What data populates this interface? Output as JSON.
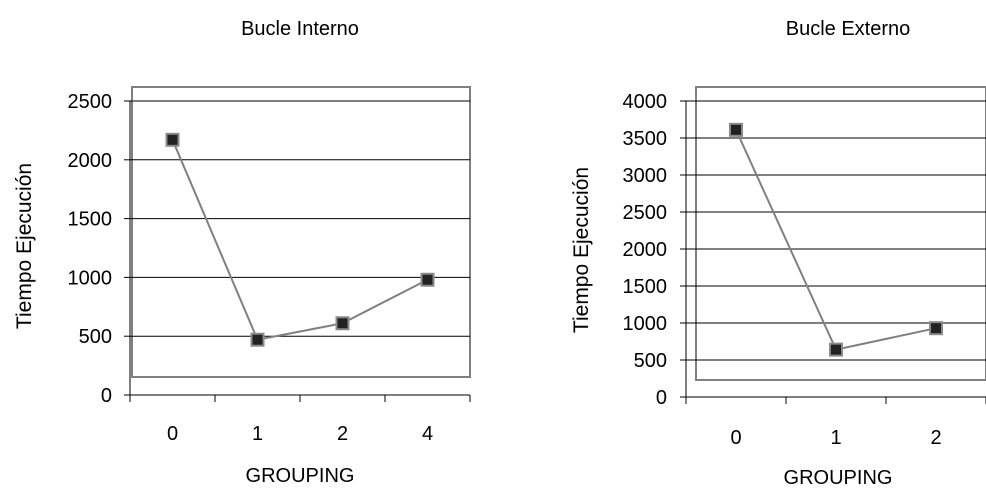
{
  "chart_data": [
    {
      "type": "line",
      "title": "Bucle Interno",
      "xlabel": "GROUPING",
      "ylabel": "Tiempo Ejecución",
      "categories": [
        "0",
        "1",
        "2",
        "4"
      ],
      "values": [
        2170,
        470,
        610,
        980
      ],
      "yticks": [
        0,
        500,
        1000,
        1500,
        2000,
        2500
      ],
      "ylim": [
        0,
        2500
      ],
      "grid": true,
      "series_color": "#808080",
      "marker_color": "#222222"
    },
    {
      "type": "line",
      "title": "Bucle Externo",
      "xlabel": "GROUPING",
      "ylabel": "Tiempo Ejecución",
      "categories": [
        "0",
        "1",
        "2"
      ],
      "values": [
        3610,
        640,
        930
      ],
      "yticks": [
        0,
        500,
        1000,
        1500,
        2000,
        2500,
        3000,
        3500,
        4000
      ],
      "ylim": [
        0,
        4000
      ],
      "grid": true,
      "series_color": "#808080",
      "marker_color": "#222222"
    }
  ]
}
